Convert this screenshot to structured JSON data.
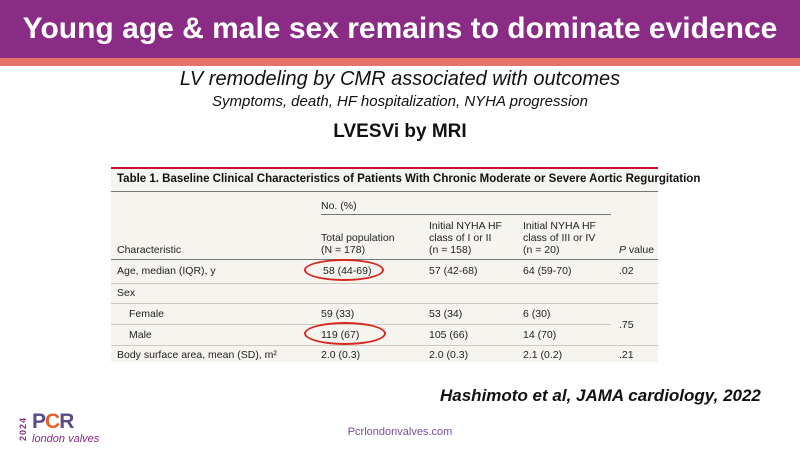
{
  "slide": {
    "title": "Young age & male sex remains to dominate evidence base",
    "subtitle_main": "LV remodeling by CMR associated with outcomes",
    "subtitle_sub": "Symptoms, death, HF hospitalization, NYHA progression",
    "section_label": "LVESVi by MRI"
  },
  "table": {
    "caption": "Table 1. Baseline Clinical Characteristics of Patients With Chronic Moderate or Severe Aortic Regurgitation",
    "group_header": "No. (%)",
    "col_characteristic": "Characteristic",
    "col_total": [
      "Total population",
      "(N = 178)"
    ],
    "col_nyha12": [
      "Initial NYHA HF",
      "class of I or II",
      "(n = 158)"
    ],
    "col_nyha34": [
      "Initial NYHA HF",
      "class of III or IV",
      "(n = 20)"
    ],
    "col_p_italic": "P",
    "col_p_rest": " value",
    "rows": [
      {
        "label": "Age, median (IQR), y",
        "total": "58 (44-69)",
        "nyha12": "57 (42-68)",
        "nyha34": "64 (59-70)",
        "p": ".02"
      },
      {
        "label": "Sex",
        "total": "",
        "nyha12": "",
        "nyha34": "",
        "p": ""
      },
      {
        "label": "Female",
        "total": "59 (33)",
        "nyha12": "53 (34)",
        "nyha34": "6 (30)",
        "p": ""
      },
      {
        "label": "Male",
        "total": "119 (67)",
        "nyha12": "105 (66)",
        "nyha34": "14 (70)",
        "p": ""
      },
      {
        "label": "Body surface area, mean (SD), m²",
        "total": "2.0 (0.3)",
        "nyha12": "2.0 (0.3)",
        "nyha34": "2.1 (0.2)",
        "p": ".21"
      }
    ],
    "sex_p": ".75",
    "highlight_color": "#d6281e"
  },
  "citation": "Hashimoto et al, JAMA cardiology, 2022",
  "footer": {
    "url": "Pcrlondonvalves.com",
    "logo_year": "2024",
    "logo_word_1": "P",
    "logo_word_2": "C",
    "logo_word_3": "R",
    "logo_tagline": "london valves"
  },
  "colors": {
    "header_bg": "#8a2c86",
    "header_stripe": "#e8716a",
    "table_bg": "#f6f4ef",
    "table_redline": "#c8102e"
  }
}
